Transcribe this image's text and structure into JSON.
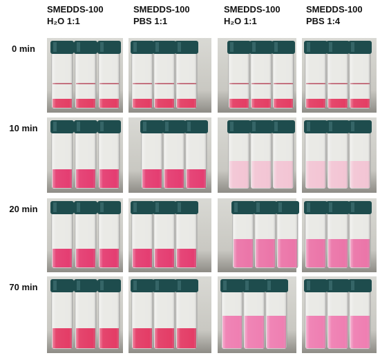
{
  "column_headers": [
    [
      "SMEDDS-100",
      "H₂O 1:1"
    ],
    [
      "SMEDDS-100",
      "PBS 1:1"
    ],
    [
      "SMEDDS-100",
      "H₂O 1:1"
    ],
    [
      "SMEDDS-100",
      "PBS 1:4"
    ]
  ],
  "row_labels": [
    "0 min",
    "10 min",
    "20 min",
    "70 min"
  ]
}
